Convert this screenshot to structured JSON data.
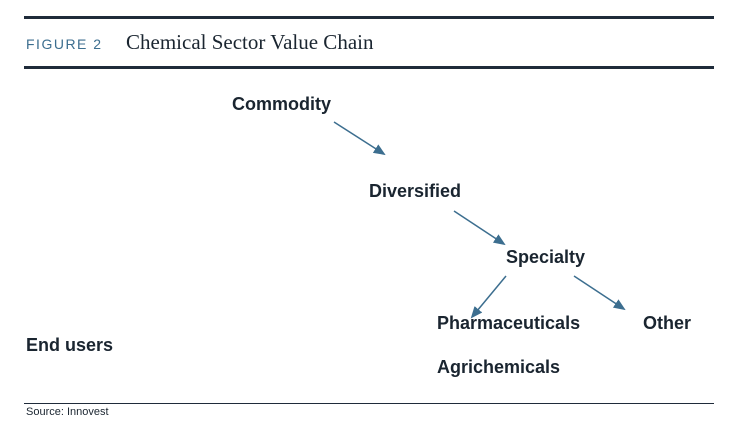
{
  "figure": {
    "label": "FIGURE 2",
    "title": "Chemical Sector Value Chain"
  },
  "nodes": {
    "commodity": "Commodity",
    "diversified": "Diversified",
    "specialty": "Specialty",
    "pharmaceuticals": "Pharmaceuticals",
    "other": "Other",
    "end_users": "End users",
    "agrichemicals": "Agrichemicals"
  },
  "source": "Source: Innovest",
  "colors": {
    "rule": "#1f2b3a",
    "arrow": "#3c6e8f",
    "text": "#1a2530",
    "figure_label": "#3c6e8f"
  }
}
